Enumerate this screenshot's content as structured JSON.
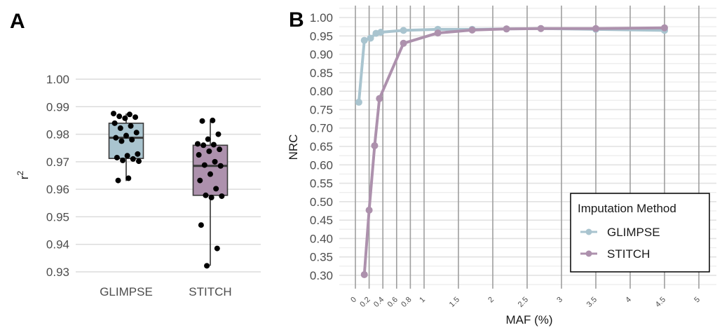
{
  "chart_data": [
    {
      "panel": "A",
      "type": "box",
      "title": "",
      "xlabel": "",
      "ylabel": "r2",
      "ylabel_text": "r",
      "ylabel_superscript": "2",
      "ylim": [
        0.93,
        1.0
      ],
      "yticks": [
        "0.93",
        "0.94",
        "0.95",
        "0.96",
        "0.97",
        "0.98",
        "0.99",
        "1.00"
      ],
      "grid": true,
      "categories": [
        "GLIMPSE",
        "STITCH"
      ],
      "boxes": [
        {
          "name": "GLIMPSE",
          "color": "#a9c4cf",
          "q1": 0.9712,
          "median": 0.9787,
          "q3": 0.984,
          "whisker_low": 0.963,
          "whisker_high": 0.9875,
          "points": [
            0.9875,
            0.9872,
            0.9865,
            0.9862,
            0.9858,
            0.984,
            0.983,
            0.9822,
            0.9806,
            0.9795,
            0.9787,
            0.978,
            0.9775,
            0.9728,
            0.9722,
            0.9715,
            0.971,
            0.9705,
            0.9702,
            0.964,
            0.9632
          ]
        },
        {
          "name": "STITCH",
          "color": "#ad91ad",
          "q1": 0.9578,
          "median": 0.9685,
          "q3": 0.976,
          "whisker_low": 0.9322,
          "whisker_high": 0.9848,
          "points": [
            0.985,
            0.9848,
            0.98,
            0.9782,
            0.9765,
            0.9762,
            0.976,
            0.9745,
            0.9738,
            0.9725,
            0.97,
            0.9688,
            0.9685,
            0.9655,
            0.9632,
            0.9602,
            0.9578,
            0.9575,
            0.957,
            0.947,
            0.9385,
            0.9322
          ]
        }
      ]
    },
    {
      "panel": "B",
      "type": "line",
      "title": "",
      "xlabel": "MAF (%)",
      "ylabel": "NRC",
      "xlim": [
        0,
        5
      ],
      "ylim": [
        0.3,
        1.0
      ],
      "xticks": [
        "0",
        "0.2",
        "0.4",
        "0.6",
        "0.8",
        "1",
        "1.5",
        "2",
        "2.5",
        "3",
        "3.5",
        "4",
        "4.5",
        "5"
      ],
      "xtick_values": [
        0,
        0.2,
        0.4,
        0.6,
        0.8,
        1,
        1.5,
        2,
        2.5,
        3,
        3.5,
        4,
        4.5,
        5
      ],
      "yticks": [
        "0.30",
        "0.35",
        "0.40",
        "0.45",
        "0.50",
        "0.55",
        "0.60",
        "0.65",
        "0.70",
        "0.75",
        "0.80",
        "0.85",
        "0.90",
        "0.95",
        "1.00"
      ],
      "grid": true,
      "legend": {
        "title": "Imputation Method",
        "position": "bottom-right"
      },
      "series": [
        {
          "name": "GLIMPSE",
          "color": "#a9c4cf",
          "x": [
            0.05,
            0.13,
            0.22,
            0.3,
            0.37,
            0.7,
            1.2,
            1.7,
            2.2,
            2.7,
            3.5,
            4.5
          ],
          "y": [
            0.77,
            0.938,
            0.944,
            0.957,
            0.96,
            0.965,
            0.968,
            0.968,
            0.969,
            0.97,
            0.968,
            0.965
          ]
        },
        {
          "name": "STITCH",
          "color": "#ad91ad",
          "x": [
            0.13,
            0.2,
            0.28,
            0.35,
            0.7,
            1.2,
            1.7,
            2.2,
            2.7,
            3.5,
            4.5
          ],
          "y": [
            0.302,
            0.477,
            0.652,
            0.78,
            0.93,
            0.958,
            0.966,
            0.969,
            0.97,
            0.97,
            0.972
          ]
        }
      ]
    }
  ],
  "panel_labels": [
    "A",
    "B"
  ]
}
